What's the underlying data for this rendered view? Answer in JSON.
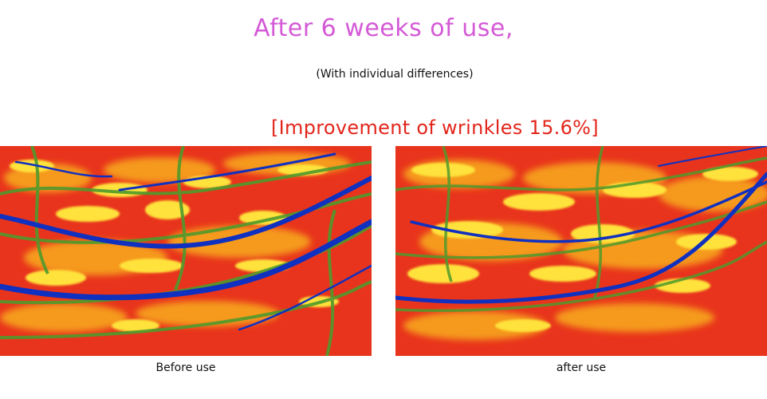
{
  "header": {
    "title": "After 6 weeks of use,",
    "subtitle": "(With individual differences)",
    "highlight": "[Improvement of wrinkles 15.6%]"
  },
  "panels": {
    "before": {
      "caption": "Before use"
    },
    "after": {
      "caption": "after use"
    }
  },
  "colors": {
    "title": "#d45ad6",
    "highlight": "#e2261c",
    "map_red": "#e8341c",
    "map_orange": "#f59a1a",
    "map_yellow": "#ffe23a",
    "map_green": "#4f9a2c",
    "map_blue": "#1030c0"
  }
}
